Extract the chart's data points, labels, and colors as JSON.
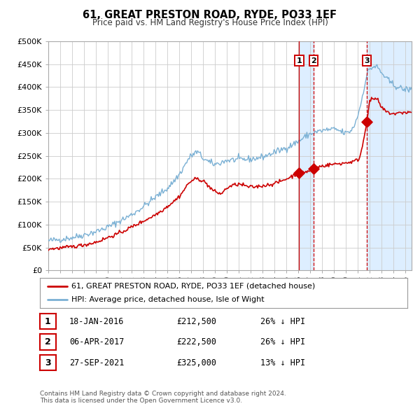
{
  "title": "61, GREAT PRESTON ROAD, RYDE, PO33 1EF",
  "subtitle": "Price paid vs. HM Land Registry's House Price Index (HPI)",
  "red_line_label": "61, GREAT PRESTON ROAD, RYDE, PO33 1EF (detached house)",
  "blue_line_label": "HPI: Average price, detached house, Isle of Wight",
  "footer1": "Contains HM Land Registry data © Crown copyright and database right 2024.",
  "footer2": "This data is licensed under the Open Government Licence v3.0.",
  "xlim": [
    1995.0,
    2025.5
  ],
  "ylim": [
    0,
    500000
  ],
  "yticks": [
    0,
    50000,
    100000,
    150000,
    200000,
    250000,
    300000,
    350000,
    400000,
    450000,
    500000
  ],
  "ytick_labels": [
    "£0",
    "£50K",
    "£100K",
    "£150K",
    "£200K",
    "£250K",
    "£300K",
    "£350K",
    "£400K",
    "£450K",
    "£500K"
  ],
  "xticks": [
    1995,
    1996,
    1997,
    1998,
    1999,
    2000,
    2001,
    2002,
    2003,
    2004,
    2005,
    2006,
    2007,
    2008,
    2009,
    2010,
    2011,
    2012,
    2013,
    2014,
    2015,
    2016,
    2017,
    2018,
    2019,
    2020,
    2021,
    2022,
    2023,
    2024,
    2025
  ],
  "sale_events": [
    {
      "num": 1,
      "year": 2016.05,
      "price": 212500,
      "label": "18-JAN-2016",
      "pct": "26%",
      "linestyle": "solid"
    },
    {
      "num": 2,
      "year": 2017.27,
      "price": 222500,
      "label": "06-APR-2017",
      "pct": "26%",
      "linestyle": "dashed"
    },
    {
      "num": 3,
      "year": 2021.74,
      "price": 325000,
      "label": "27-SEP-2021",
      "pct": "13%",
      "linestyle": "dashed"
    }
  ],
  "red_color": "#cc0000",
  "blue_color": "#7ab0d4",
  "shading_color": "#ddeeff",
  "grid_color": "#cccccc",
  "background_color": "#ffffff",
  "table_rows": [
    {
      "num": 1,
      "date": "18-JAN-2016",
      "price": "£212,500",
      "pct": "26% ↓ HPI"
    },
    {
      "num": 2,
      "date": "06-APR-2017",
      "price": "£222,500",
      "pct": "26% ↓ HPI"
    },
    {
      "num": 3,
      "date": "27-SEP-2021",
      "price": "£325,000",
      "pct": "13% ↓ HPI"
    }
  ]
}
